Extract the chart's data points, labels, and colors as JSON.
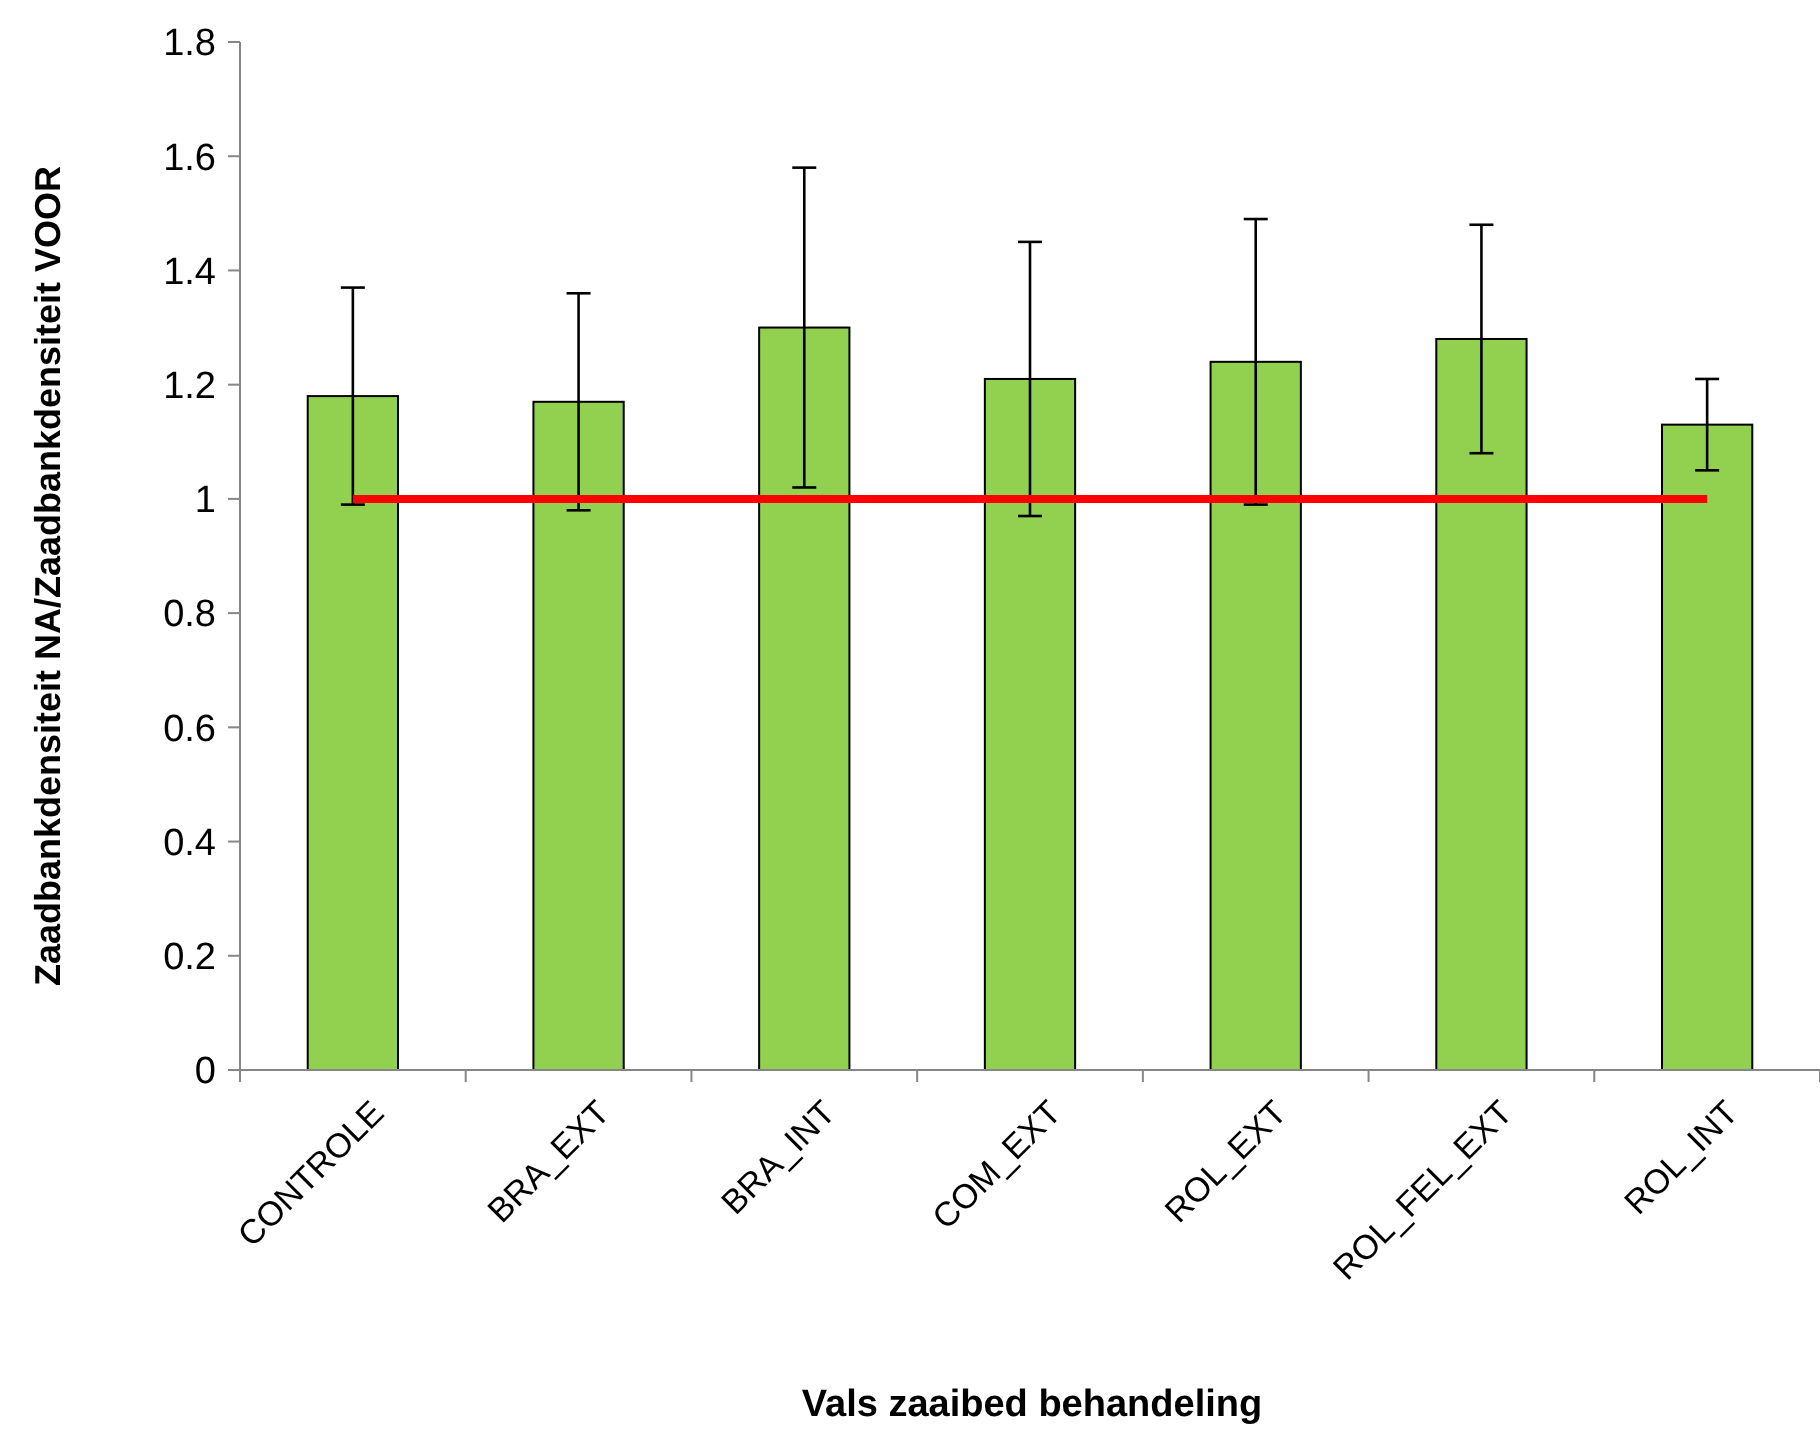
{
  "chart_data": {
    "type": "bar",
    "xlabel": "Vals zaaibed behandeling",
    "ylabel": "Zaadbankdensiteit NA/Zaadbankdensiteit VOOR",
    "categories": [
      "CONTROLE",
      "BRA_EXT",
      "BRA_INT",
      "COM_EXT",
      "ROL_EXT",
      "ROL_FEL_EXT",
      "ROL_INT"
    ],
    "series": [
      {
        "color": "#92d050",
        "values": [
          1.18,
          1.17,
          1.3,
          1.21,
          1.24,
          1.28,
          1.13
        ],
        "errors": [
          0.19,
          0.19,
          0.28,
          0.24,
          0.25,
          0.2,
          0.08
        ]
      },
      {
        "type": "line",
        "color": "#ff0000",
        "values": [
          1,
          1,
          1,
          1,
          1,
          1,
          1
        ]
      }
    ],
    "ylim": [
      0,
      1.8
    ],
    "yticks": [
      0,
      0.2,
      0.4,
      0.6,
      0.8,
      1,
      1.2,
      1.4,
      1.6,
      1.8
    ],
    "grid": false,
    "marker": "none",
    "line_style": "solid"
  }
}
